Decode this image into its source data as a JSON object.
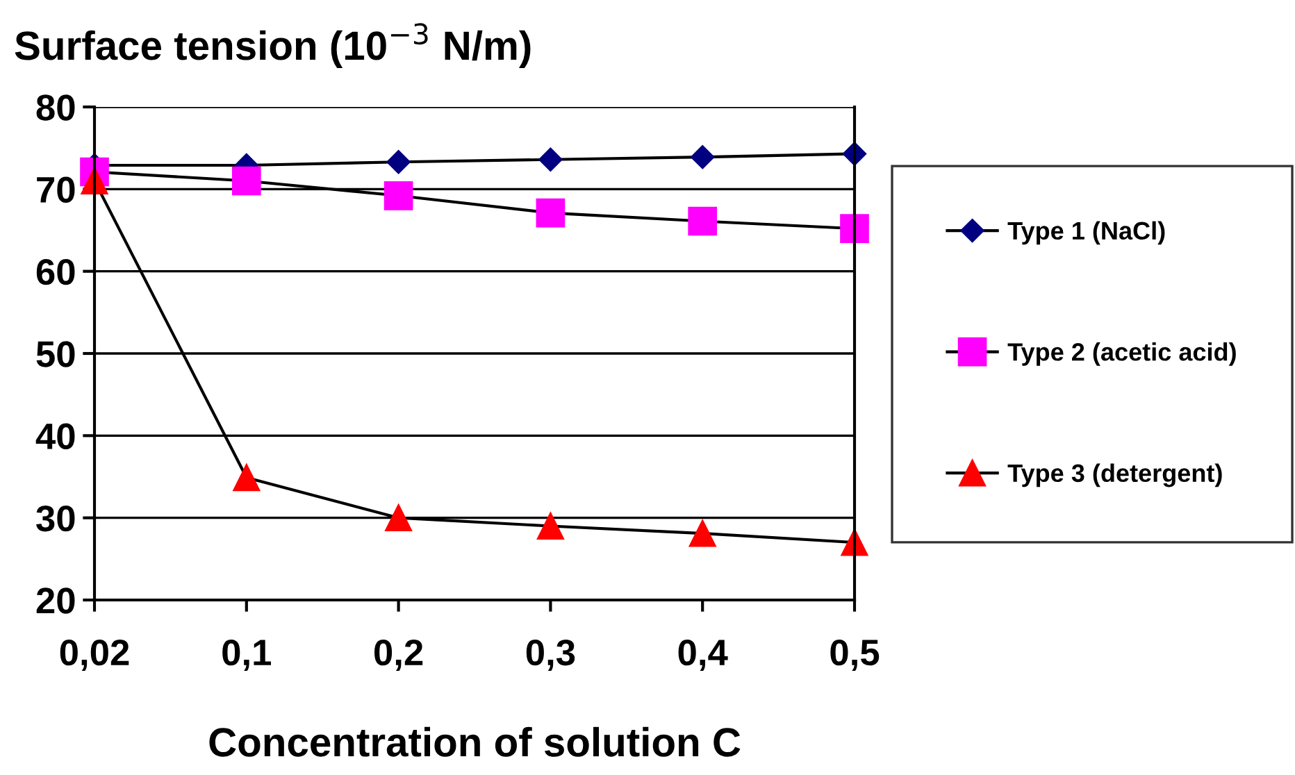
{
  "chart_data": {
    "type": "line",
    "ylabel": "Surface tension (10$^{−3}$ N/m)",
    "xlabel": "Concentration of solution C",
    "categories": [
      "0,02",
      "0,1",
      "0,2",
      "0,3",
      "0,4",
      "0,5"
    ],
    "ylim": [
      20,
      80
    ],
    "yticks": [
      20,
      30,
      40,
      50,
      60,
      70,
      80
    ],
    "grid": "y",
    "legend": "right",
    "series": [
      {
        "name": "Type 1 (NaCl)",
        "color": "#000080",
        "marker": "diamond",
        "values": [
          72.9,
          72.9,
          73.3,
          73.6,
          73.9,
          74.3
        ]
      },
      {
        "name": "Type 2 (acetic acid)",
        "color": "#ff00ff",
        "marker": "square",
        "values": [
          72.1,
          71.0,
          69.2,
          67.1,
          66.1,
          65.2
        ]
      },
      {
        "name": "Type 3 (detergent)",
        "color": "#ff0000",
        "marker": "triangle",
        "values": [
          71.0,
          34.9,
          30.0,
          29.0,
          28.1,
          27.0
        ]
      }
    ]
  }
}
